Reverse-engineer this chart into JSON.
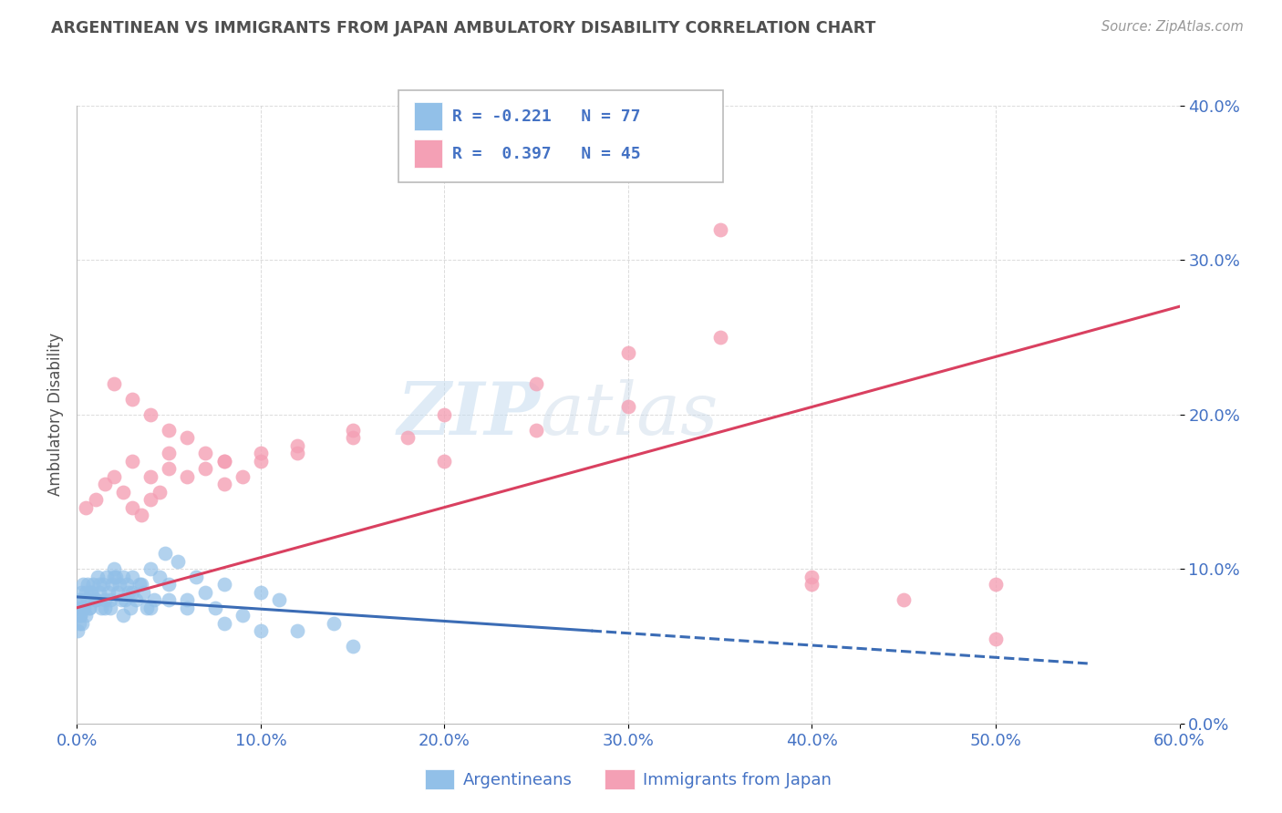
{
  "title": "ARGENTINEAN VS IMMIGRANTS FROM JAPAN AMBULATORY DISABILITY CORRELATION CHART",
  "source": "Source: ZipAtlas.com",
  "ylabel": "Ambulatory Disability",
  "xlim": [
    0.0,
    60.0
  ],
  "ylim": [
    0.0,
    40.0
  ],
  "legend_labels": [
    "Argentineans",
    "Immigrants from Japan"
  ],
  "blue_color": "#92C0E8",
  "pink_color": "#F4A0B5",
  "blue_line_color": "#3B6CB5",
  "pink_line_color": "#D94060",
  "background_color": "#FFFFFF",
  "grid_color": "#CCCCCC",
  "title_color": "#505050",
  "axis_label_color": "#4472C4",
  "watermark_zip": "ZIP",
  "watermark_atlas": "atlas",
  "argentineans_x": [
    0.1,
    0.15,
    0.2,
    0.25,
    0.3,
    0.35,
    0.4,
    0.5,
    0.6,
    0.7,
    0.8,
    0.9,
    1.0,
    1.1,
    1.2,
    1.3,
    1.4,
    1.5,
    1.6,
    1.7,
    1.8,
    1.9,
    2.0,
    2.1,
    2.2,
    2.3,
    2.4,
    2.5,
    2.6,
    2.7,
    2.8,
    2.9,
    3.0,
    3.2,
    3.4,
    3.6,
    3.8,
    4.0,
    4.2,
    4.5,
    4.8,
    5.0,
    5.5,
    6.0,
    6.5,
    7.0,
    7.5,
    8.0,
    9.0,
    10.0,
    11.0,
    12.0,
    14.0,
    0.05,
    0.1,
    0.15,
    0.2,
    0.3,
    0.4,
    0.5,
    0.6,
    0.7,
    0.8,
    1.0,
    1.2,
    1.5,
    1.8,
    2.0,
    2.5,
    3.0,
    3.5,
    4.0,
    5.0,
    6.0,
    8.0,
    10.0,
    15.0
  ],
  "argentineans_y": [
    7.5,
    8.0,
    7.0,
    8.5,
    7.5,
    9.0,
    8.0,
    8.5,
    9.0,
    7.5,
    8.5,
    9.0,
    8.0,
    9.5,
    8.5,
    7.5,
    9.0,
    8.0,
    9.5,
    8.5,
    7.5,
    9.0,
    10.0,
    9.5,
    8.5,
    9.0,
    8.0,
    9.5,
    8.0,
    9.0,
    8.5,
    7.5,
    9.5,
    8.0,
    9.0,
    8.5,
    7.5,
    10.0,
    8.0,
    9.5,
    11.0,
    9.0,
    10.5,
    8.0,
    9.5,
    8.5,
    7.5,
    9.0,
    7.0,
    8.5,
    8.0,
    6.0,
    6.5,
    6.0,
    7.0,
    6.5,
    7.0,
    6.5,
    7.5,
    7.0,
    8.0,
    7.5,
    8.5,
    8.0,
    9.0,
    7.5,
    8.0,
    9.5,
    7.0,
    8.5,
    9.0,
    7.5,
    8.0,
    7.5,
    6.5,
    6.0,
    5.0
  ],
  "japan_x": [
    0.5,
    1.0,
    1.5,
    2.0,
    2.5,
    3.0,
    3.5,
    4.0,
    4.5,
    5.0,
    6.0,
    7.0,
    8.0,
    9.0,
    10.0,
    12.0,
    15.0,
    20.0,
    25.0,
    30.0,
    35.0,
    40.0,
    50.0,
    3.0,
    4.0,
    5.0,
    8.0,
    10.0,
    12.0,
    15.0,
    18.0,
    20.0,
    25.0,
    30.0,
    35.0,
    40.0,
    45.0,
    50.0,
    2.0,
    3.0,
    4.0,
    5.0,
    6.0,
    7.0,
    8.0
  ],
  "japan_y": [
    14.0,
    14.5,
    15.5,
    16.0,
    15.0,
    14.0,
    13.5,
    14.5,
    15.0,
    16.5,
    16.0,
    16.5,
    15.5,
    16.0,
    17.0,
    17.5,
    18.5,
    17.0,
    19.0,
    20.5,
    25.0,
    9.0,
    9.0,
    17.0,
    16.0,
    17.5,
    17.0,
    17.5,
    18.0,
    19.0,
    18.5,
    20.0,
    22.0,
    24.0,
    32.0,
    9.5,
    8.0,
    5.5,
    22.0,
    21.0,
    20.0,
    19.0,
    18.5,
    17.5,
    17.0
  ],
  "blue_trend_x0": 0.0,
  "blue_trend_y0": 8.2,
  "blue_trend_x1": 60.0,
  "blue_trend_y1": 3.5,
  "blue_solid_end": 28.0,
  "blue_dash_end": 55.0,
  "pink_trend_x0": 0.0,
  "pink_trend_y0": 7.5,
  "pink_trend_x1": 60.0,
  "pink_trend_y1": 27.0
}
